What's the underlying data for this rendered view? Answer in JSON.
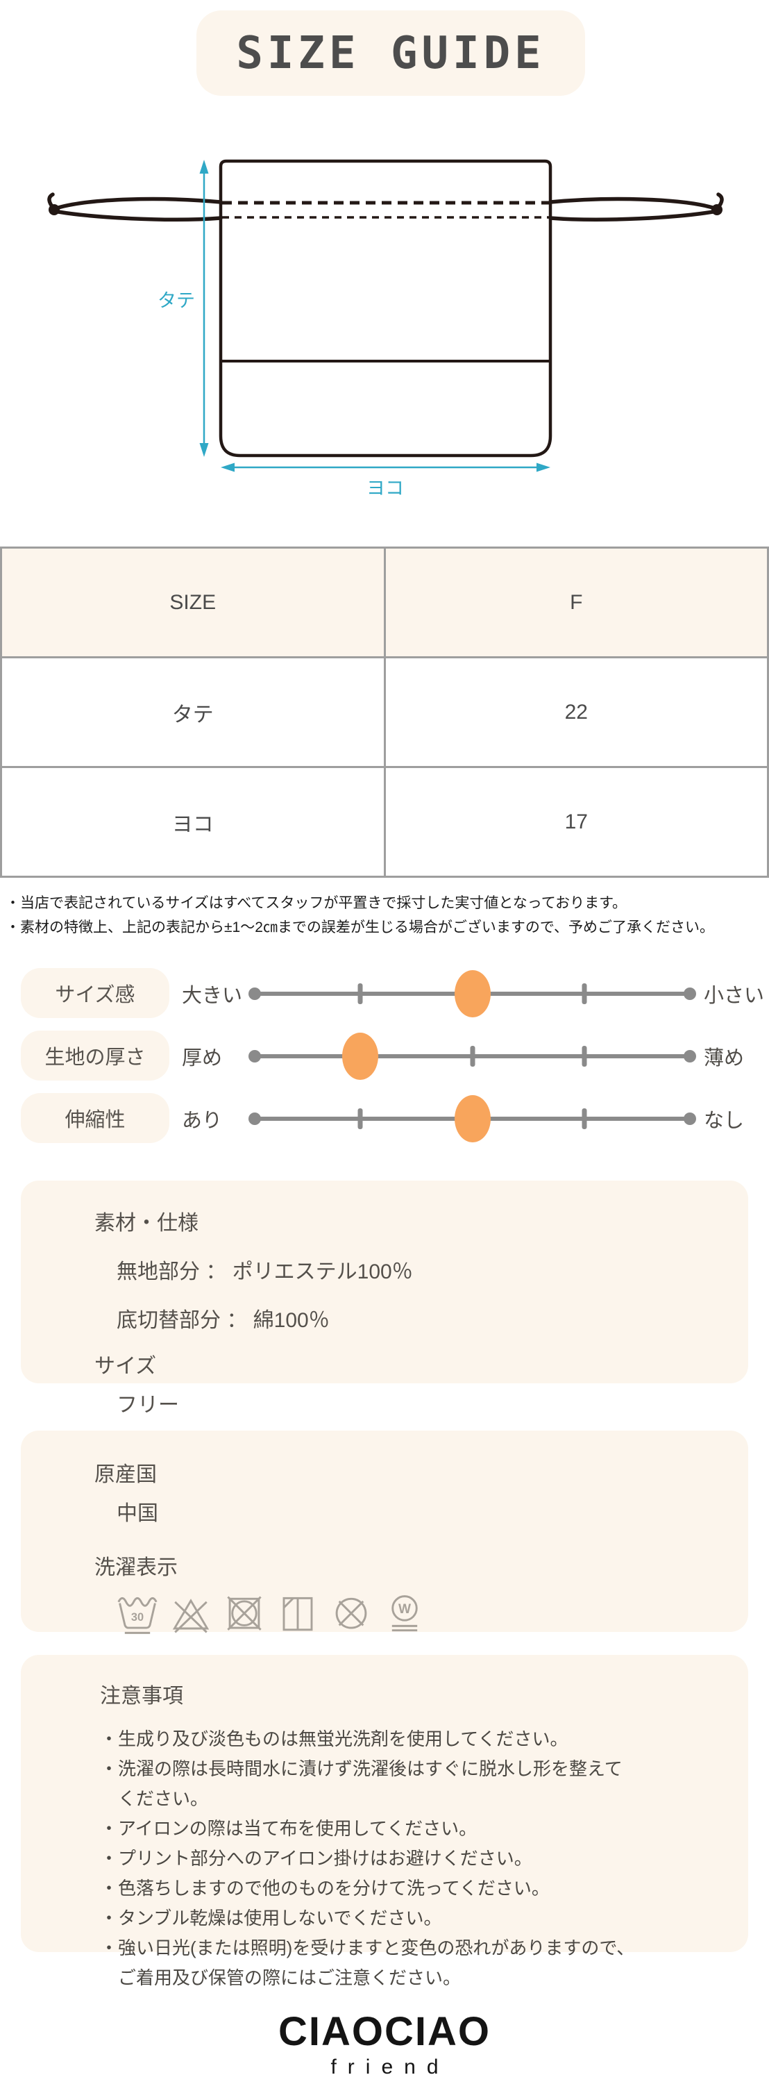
{
  "page": {
    "title": "SIZE GUIDE"
  },
  "diagram": {
    "vertical_label": "タテ",
    "horizontal_label": "ヨコ"
  },
  "size_table": {
    "headers": [
      "SIZE",
      "F"
    ],
    "rows": [
      [
        "タテ",
        "22"
      ],
      [
        "ヨコ",
        "17"
      ]
    ]
  },
  "notes": [
    "・当店で表記されているサイズはすべてスタッフが平置きで採寸した実寸値となっております。",
    "・素材の特徴上、上記の表記から±1～2㎝までの誤差が生じる場合がございますので、予めご了承ください。"
  ],
  "sliders": {
    "items": [
      {
        "name": "サイズ感",
        "left": "大きい",
        "right": "小さい",
        "value_percent": 50
      },
      {
        "name": "生地の厚さ",
        "left": "厚め",
        "right": "薄め",
        "value_percent": 25
      },
      {
        "name": "伸縮性",
        "left": "あり",
        "right": "なし",
        "value_percent": 50
      }
    ],
    "tick_percents": [
      25,
      50,
      75
    ]
  },
  "material": {
    "heading": "素材・仕様",
    "lines": [
      "無地部分 ： ポリエステル100％",
      "底切替部分 ： 綿100％"
    ],
    "size_heading": "サイズ",
    "size_value": "フリー"
  },
  "origin": {
    "heading": "原産国",
    "value": "中国",
    "care_heading": "洗濯表示",
    "care_symbols": [
      "wash-30-gentle",
      "do-not-bleach",
      "do-not-tumble-dry",
      "line-dry-in-shade",
      "do-not-dry-clean",
      "wet-clean-gentle"
    ]
  },
  "precautions": {
    "heading": "注意事項",
    "items": [
      {
        "lines": [
          "・生成り及び淡色ものは無蛍光洗剤を使用してください。"
        ]
      },
      {
        "lines": [
          "・洗濯の際は長時間水に漬けず洗濯後はすぐに脱水し形を整えて",
          "ください。"
        ]
      },
      {
        "lines": [
          "・アイロンの際は当て布を使用してください。"
        ]
      },
      {
        "lines": [
          "・プリント部分へのアイロン掛けはお避けください。"
        ]
      },
      {
        "lines": [
          "・色落ちしますので他のものを分けて洗ってください。"
        ]
      },
      {
        "lines": [
          "・タンブル乾燥は使用しないでください。"
        ]
      },
      {
        "lines": [
          "・強い日光(または照明)を受けますと変色の恐れがありますので、",
          "ご着用及び保管の際にはご注意ください。"
        ]
      }
    ]
  },
  "brand": {
    "name": "CIAOCIAO",
    "sub": "friend"
  },
  "colors": {
    "cream": "#FCF5EC",
    "accent_cyan": "#2FA8C6",
    "accent_orange": "#F8A55C",
    "bag_outline": "#231815",
    "table_border": "#9E9E9E",
    "text_dark": "#4A4A4A",
    "care_icon_gray": "#A8A29A"
  }
}
